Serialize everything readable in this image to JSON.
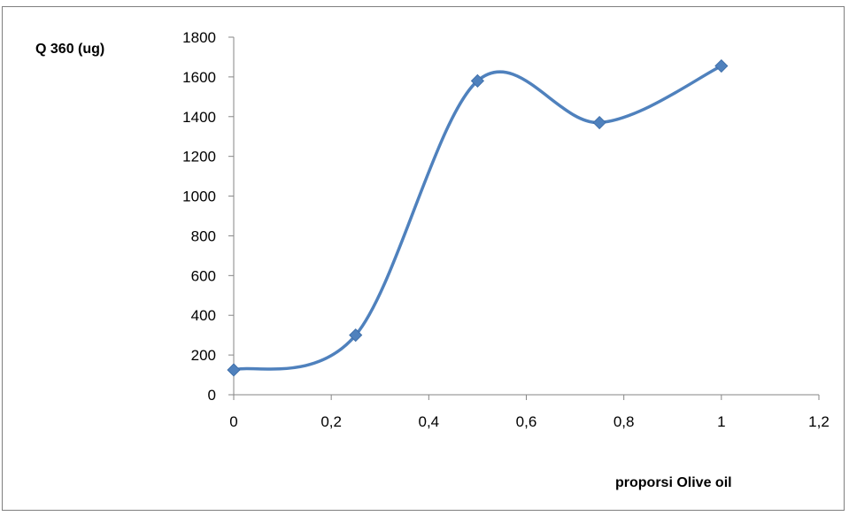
{
  "chart_data": {
    "type": "line",
    "title": "",
    "xlabel": "proporsi Olive oil",
    "ylabel": "Q 360 (ug)",
    "xlim": [
      0,
      1.2
    ],
    "ylim": [
      0,
      1800
    ],
    "x_ticks": [
      "0",
      "0,2",
      "0,4",
      "0,6",
      "0,8",
      "1",
      "1,2"
    ],
    "y_ticks": [
      "0",
      "200",
      "400",
      "600",
      "800",
      "1000",
      "1200",
      "1400",
      "1600",
      "1800"
    ],
    "grid": false,
    "smooth": true,
    "marker": "diamond",
    "series": [
      {
        "color": "#4f81bd",
        "x": [
          0,
          0.25,
          0.5,
          0.75,
          1
        ],
        "y": [
          125,
          300,
          1580,
          1370,
          1655
        ]
      }
    ]
  }
}
